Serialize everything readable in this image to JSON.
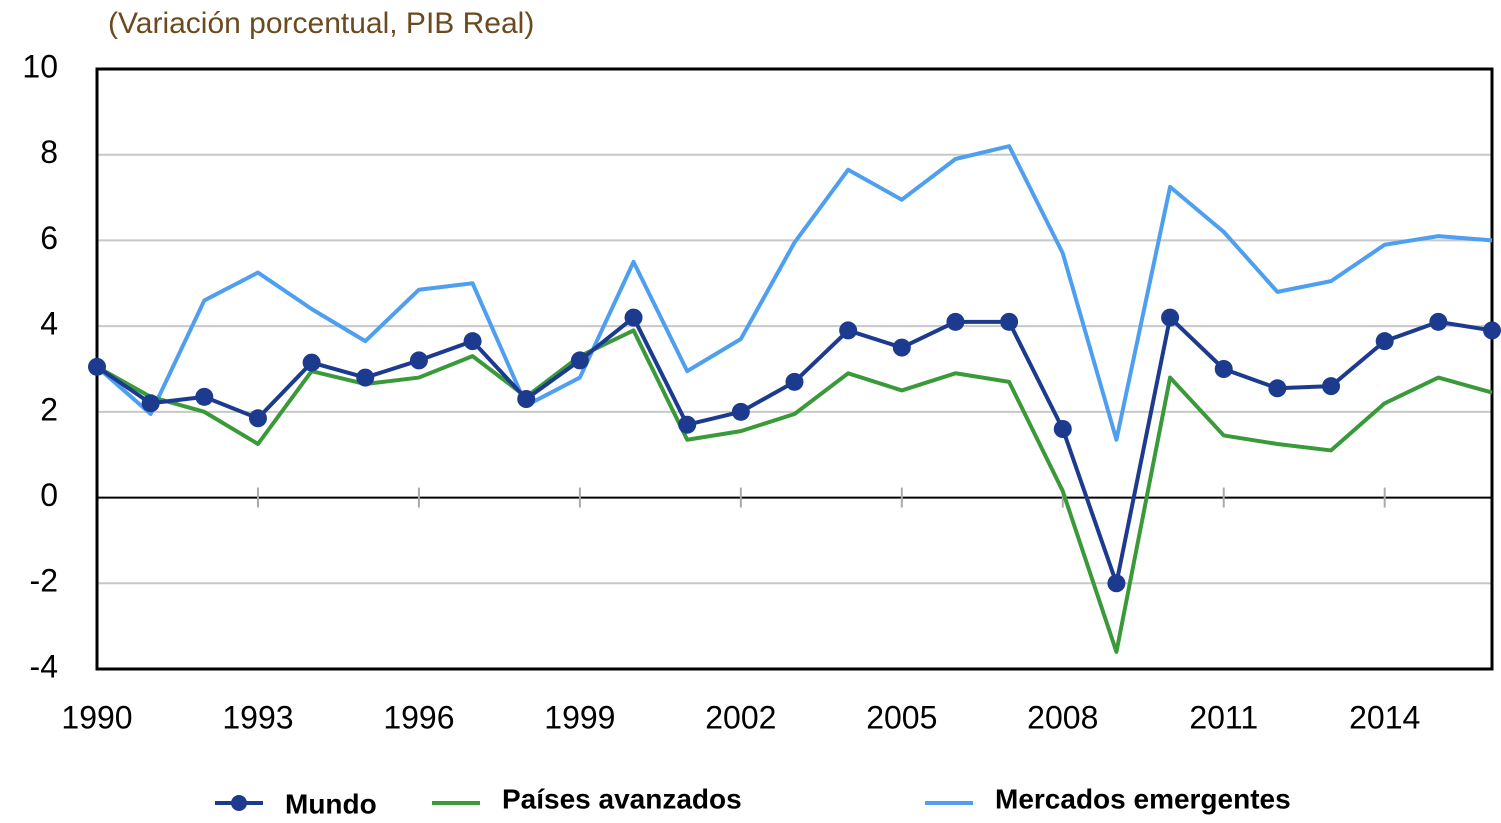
{
  "chart_data": {
    "type": "line",
    "subtitle": "(Variación porcentual, PIB Real)",
    "x": [
      1990,
      1991,
      1992,
      1993,
      1994,
      1995,
      1996,
      1997,
      1998,
      1999,
      2000,
      2001,
      2002,
      2003,
      2004,
      2005,
      2006,
      2007,
      2008,
      2009,
      2010,
      2011,
      2012,
      2013,
      2014,
      2015,
      2016
    ],
    "series": [
      {
        "name": "Mundo",
        "color": "#1c3b8f",
        "markers": true,
        "values": [
          3.05,
          2.2,
          2.35,
          1.85,
          3.15,
          2.8,
          3.2,
          3.65,
          2.3,
          3.2,
          4.2,
          1.7,
          2.0,
          2.7,
          3.9,
          3.5,
          4.1,
          4.1,
          1.6,
          -2.0,
          4.2,
          3.0,
          2.55,
          2.6,
          3.65,
          4.1,
          3.9
        ]
      },
      {
        "name": "Países avanzados",
        "color": "#3a9a3a",
        "markers": false,
        "values": [
          3.05,
          2.35,
          2.0,
          1.25,
          2.95,
          2.65,
          2.8,
          3.3,
          2.35,
          3.3,
          3.9,
          1.35,
          1.55,
          1.95,
          2.9,
          2.5,
          2.9,
          2.7,
          0.15,
          -3.6,
          2.8,
          1.45,
          1.25,
          1.1,
          2.2,
          2.8,
          2.45
        ]
      },
      {
        "name": "Mercados emergentes",
        "color": "#4f9ff0",
        "markers": false,
        "values": [
          3.05,
          1.95,
          4.6,
          5.25,
          4.4,
          3.65,
          4.85,
          5.0,
          2.15,
          2.8,
          5.5,
          2.95,
          3.7,
          5.95,
          7.65,
          6.95,
          7.9,
          8.2,
          5.7,
          1.35,
          7.25,
          6.2,
          4.8,
          5.05,
          5.9,
          6.1,
          6.0
        ]
      }
    ],
    "xlim": [
      1990,
      2016
    ],
    "xticks": [
      1990,
      1993,
      1996,
      1999,
      2002,
      2005,
      2008,
      2011,
      2014
    ],
    "ylim": [
      -4,
      10
    ],
    "yticks": [
      -4,
      -2,
      0,
      2,
      4,
      6,
      8,
      10
    ],
    "grid": true
  }
}
